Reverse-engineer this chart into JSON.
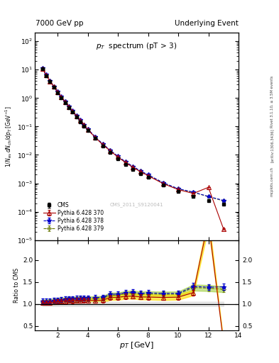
{
  "title_left": "7000 GeV pp",
  "title_right": "Underlying Event",
  "plot_title": "p_{T}  spectrum (pT > 3)",
  "ylabel_main": "1/N_{ev} dN_{ch} / dp_{T} [GeV^{-1}]",
  "ylabel_ratio": "Ratio to CMS",
  "xlabel": "p_{T} [GeV]",
  "watermark": "CMS_2011_S9120041",
  "right_label_top": "Rivet 3.1.10, ≥ 3.5M events",
  "right_label_mid": "[arXiv:1306.3436]",
  "right_label_bot": "mcplots.cern.ch",
  "cms_x": [
    1.0,
    1.25,
    1.5,
    1.75,
    2.0,
    2.25,
    2.5,
    2.75,
    3.0,
    3.25,
    3.5,
    3.75,
    4.0,
    4.5,
    5.0,
    5.5,
    6.0,
    6.5,
    7.0,
    7.5,
    8.0,
    9.0,
    10.0,
    11.0,
    12.0,
    13.0
  ],
  "cms_y": [
    10.5,
    6.2,
    3.8,
    2.4,
    1.55,
    1.02,
    0.68,
    0.46,
    0.315,
    0.215,
    0.148,
    0.103,
    0.072,
    0.038,
    0.021,
    0.012,
    0.0073,
    0.0046,
    0.0031,
    0.0022,
    0.0016,
    0.00085,
    0.00052,
    0.00035,
    0.00025,
    0.00018
  ],
  "cms_yerr": [
    0.5,
    0.3,
    0.18,
    0.12,
    0.08,
    0.05,
    0.034,
    0.023,
    0.016,
    0.011,
    0.0075,
    0.0052,
    0.0036,
    0.0019,
    0.00105,
    0.0006,
    0.000365,
    0.00023,
    0.000155,
    0.00011,
    8e-05,
    4.25e-05,
    2.6e-05,
    1.75e-05,
    1.25e-05,
    9e-06
  ],
  "py370_x": [
    1.0,
    1.25,
    1.5,
    1.75,
    2.0,
    2.25,
    2.5,
    2.75,
    3.0,
    3.25,
    3.5,
    3.75,
    4.0,
    4.5,
    5.0,
    5.5,
    6.0,
    6.5,
    7.0,
    7.5,
    8.0,
    9.0,
    10.0,
    11.0,
    12.0,
    13.0
  ],
  "py370_y": [
    10.8,
    6.35,
    3.92,
    2.5,
    1.63,
    1.08,
    0.725,
    0.495,
    0.338,
    0.232,
    0.16,
    0.112,
    0.078,
    0.041,
    0.0228,
    0.0138,
    0.0084,
    0.0054,
    0.00365,
    0.00255,
    0.00185,
    0.000975,
    0.0006,
    0.00044,
    0.00072,
    2.5e-05
  ],
  "py370_yerr": [
    0.07,
    0.04,
    0.025,
    0.016,
    0.01,
    0.007,
    0.005,
    0.003,
    0.002,
    0.0015,
    0.001,
    0.0007,
    0.0005,
    0.00026,
    0.000145,
    8.8e-05,
    5.4e-05,
    3.5e-05,
    2.3e-05,
    1.6e-05,
    1.2e-05,
    6.3e-06,
    3.9e-06,
    2.8e-06,
    4.6e-06,
    1.6e-06
  ],
  "py378_x": [
    1.0,
    1.25,
    1.5,
    1.75,
    2.0,
    2.25,
    2.5,
    2.75,
    3.0,
    3.25,
    3.5,
    3.75,
    4.0,
    4.5,
    5.0,
    5.5,
    6.0,
    6.5,
    7.0,
    7.5,
    8.0,
    9.0,
    10.0,
    11.0,
    12.0,
    13.0
  ],
  "py378_y": [
    11.2,
    6.6,
    4.05,
    2.59,
    1.685,
    1.12,
    0.755,
    0.516,
    0.353,
    0.242,
    0.167,
    0.117,
    0.082,
    0.0435,
    0.0242,
    0.01465,
    0.00893,
    0.00578,
    0.00393,
    0.00273,
    0.002,
    0.001055,
    0.000645,
    0.00049,
    0.000345,
    0.00025
  ],
  "py378_yerr": [
    0.07,
    0.042,
    0.026,
    0.016,
    0.011,
    0.007,
    0.005,
    0.003,
    0.0023,
    0.0016,
    0.0011,
    0.00075,
    0.00053,
    0.00028,
    0.000155,
    9.4e-05,
    5.74e-05,
    3.71e-05,
    2.52e-05,
    1.76e-05,
    1.29e-05,
    6.8e-06,
    4.1e-06,
    3.2e-06,
    2.2e-06,
    1.6e-06
  ],
  "py379_x": [
    1.0,
    1.25,
    1.5,
    1.75,
    2.0,
    2.25,
    2.5,
    2.75,
    3.0,
    3.25,
    3.5,
    3.75,
    4.0,
    4.5,
    5.0,
    5.5,
    6.0,
    6.5,
    7.0,
    7.5,
    8.0,
    9.0,
    10.0,
    11.0,
    12.0,
    13.0
  ],
  "py379_y": [
    11.0,
    6.5,
    4.0,
    2.55,
    1.66,
    1.105,
    0.742,
    0.508,
    0.347,
    0.238,
    0.164,
    0.114,
    0.08,
    0.0425,
    0.02365,
    0.01435,
    0.00875,
    0.00566,
    0.00385,
    0.00268,
    0.00196,
    0.001035,
    0.000635,
    0.00048,
    0.00034,
    0.00024
  ],
  "py379_yerr": [
    0.07,
    0.041,
    0.025,
    0.016,
    0.011,
    0.007,
    0.005,
    0.003,
    0.0022,
    0.0015,
    0.00105,
    0.00073,
    0.00051,
    0.000272,
    0.000152,
    9.2e-05,
    5.62e-05,
    3.64e-05,
    2.47e-05,
    1.72e-05,
    1.26e-05,
    6.6e-06,
    4.1e-06,
    3.1e-06,
    2.2e-06,
    1.5e-06
  ],
  "cms_color": "#000000",
  "py370_color": "#aa0000",
  "py378_color": "#0000cc",
  "py379_color": "#667700",
  "band370_color": "#ffdd00",
  "band379_color": "#99cc33",
  "xlim": [
    0.5,
    14.0
  ],
  "ylim_main": [
    1e-05,
    200.0
  ],
  "ylim_ratio": [
    0.4,
    2.45
  ],
  "ratio_yticks": [
    0.5,
    1.0,
    1.5,
    2.0
  ]
}
